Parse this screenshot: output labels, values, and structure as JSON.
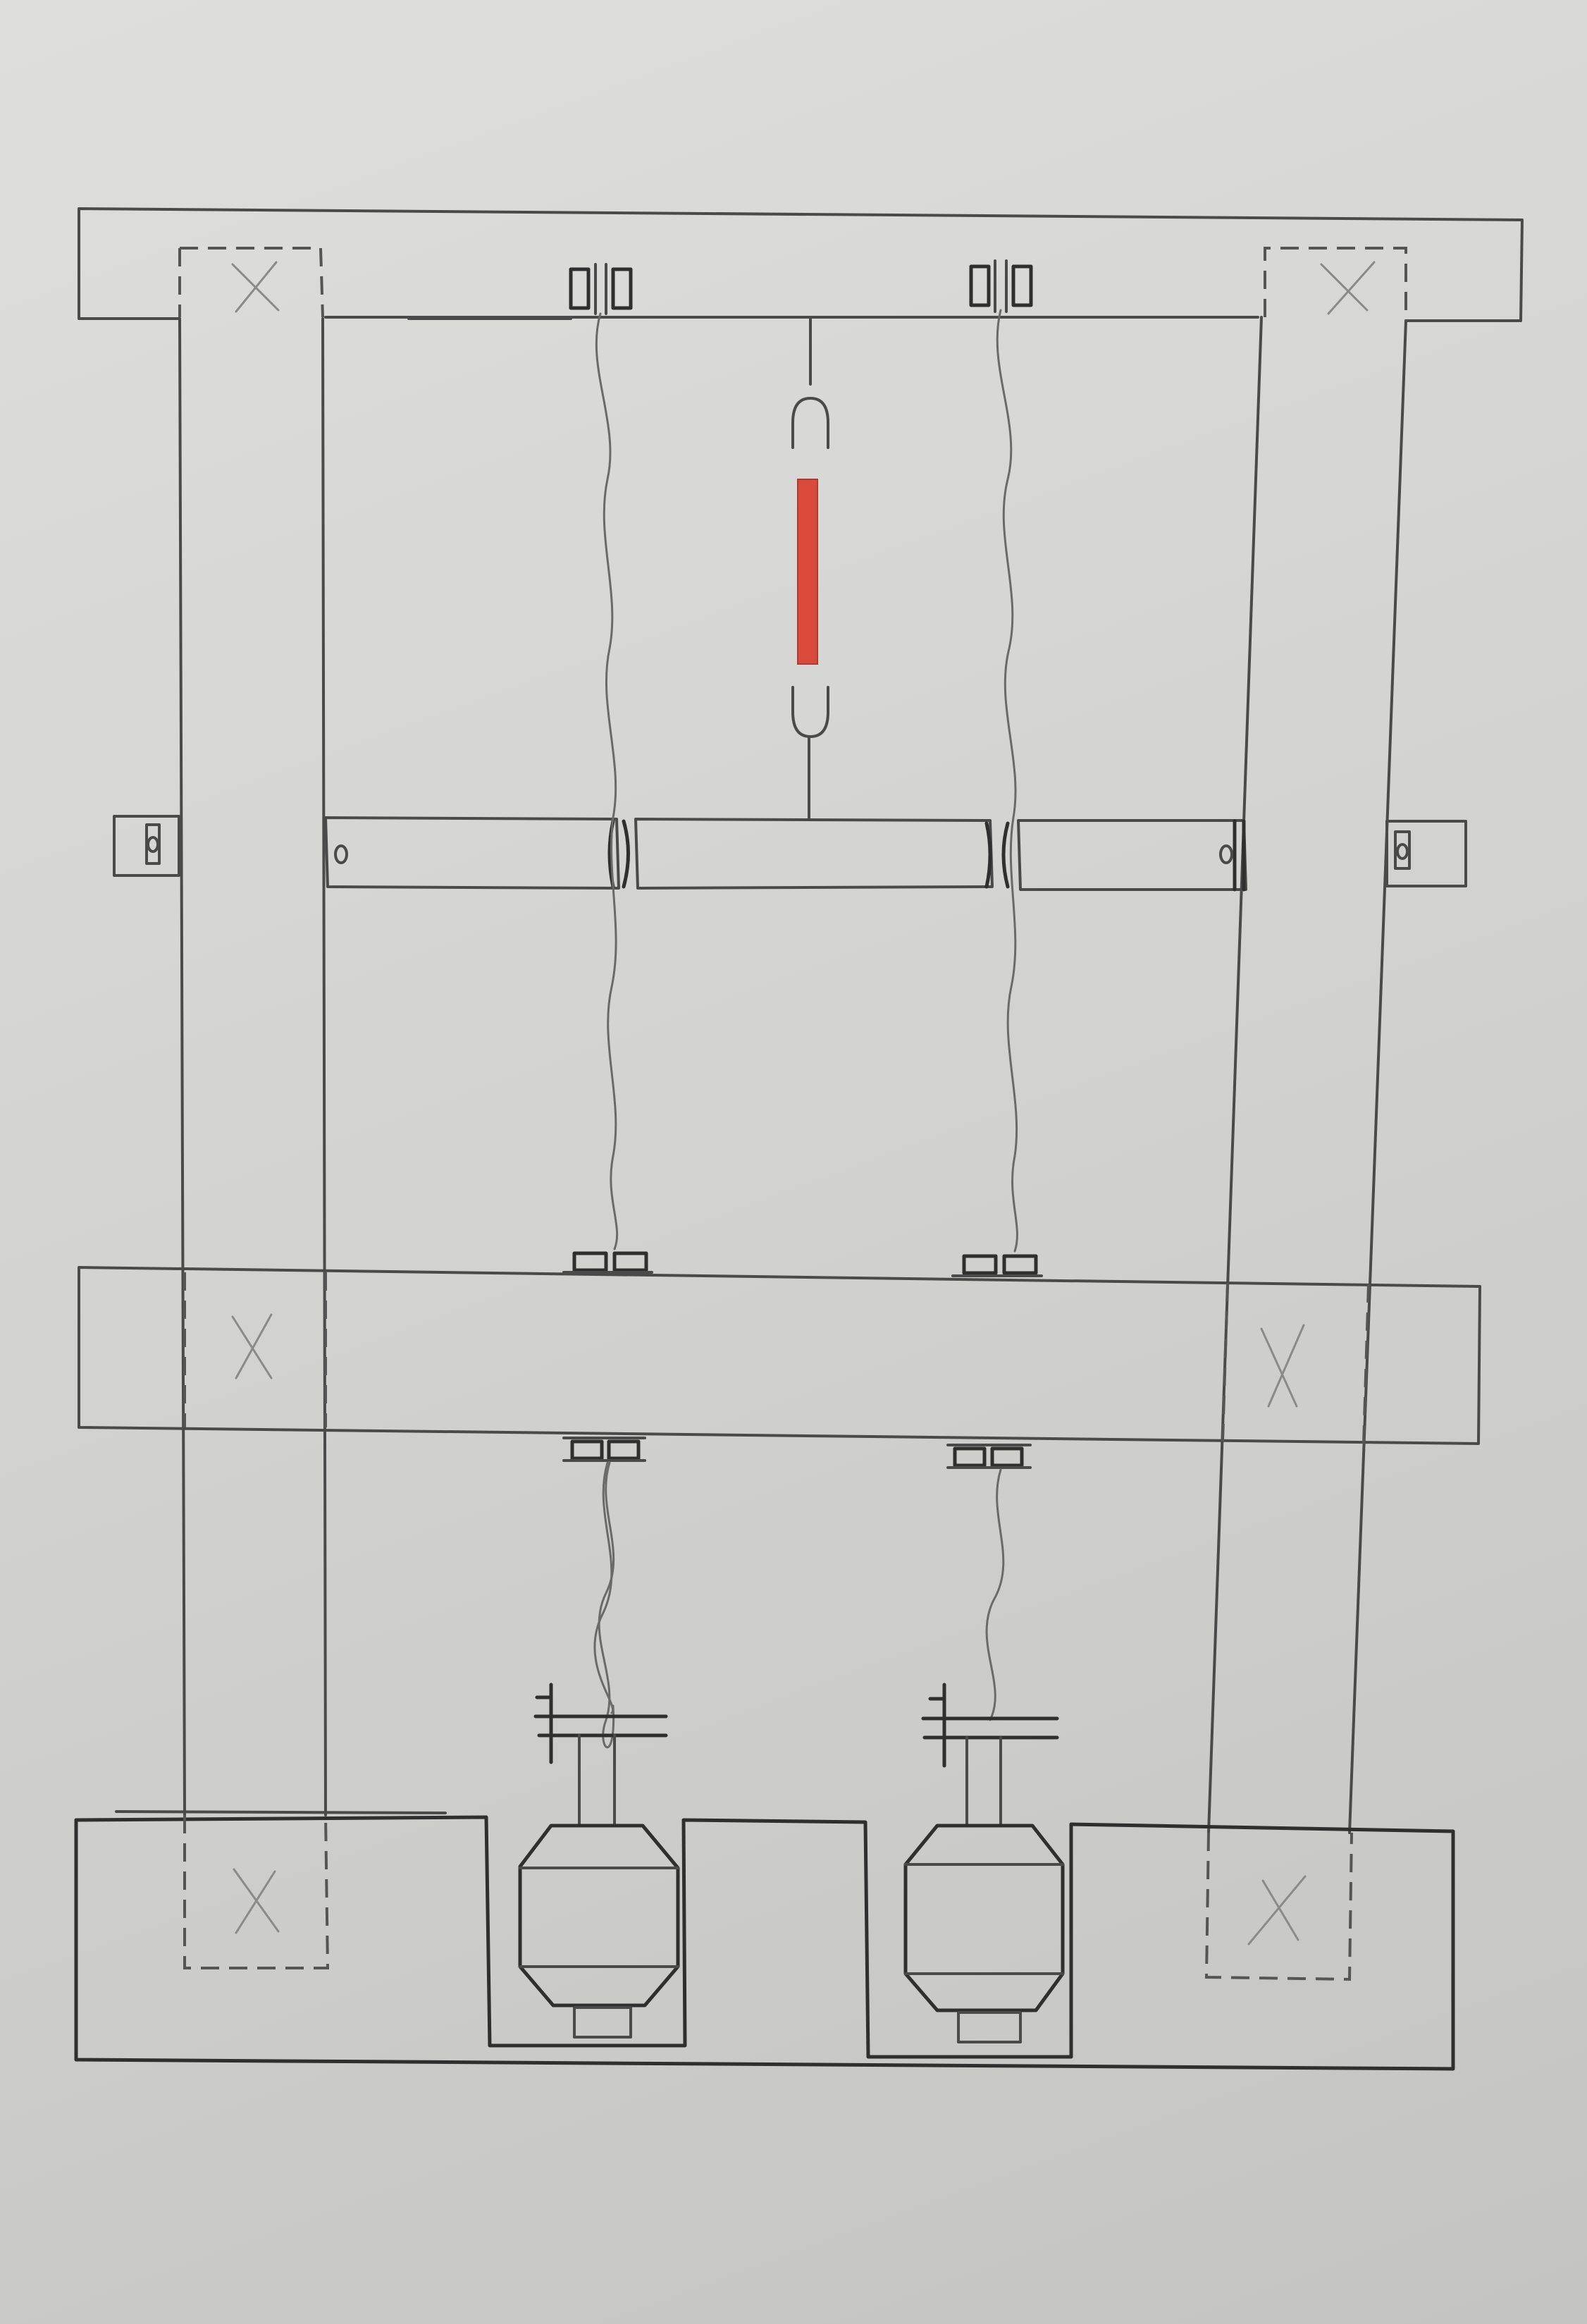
{
  "diagram": {
    "colors": {
      "paper": "#d6d6d4",
      "pencil": "#4a4a4a",
      "accent_rod": "#d94a3c"
    },
    "components": [
      "top-crossbeam",
      "left-column",
      "right-column",
      "middle-crossbeam",
      "lower-crossbeam",
      "base-frame",
      "left-motor",
      "right-motor",
      "left-cable",
      "right-cable",
      "tension-rod"
    ]
  }
}
